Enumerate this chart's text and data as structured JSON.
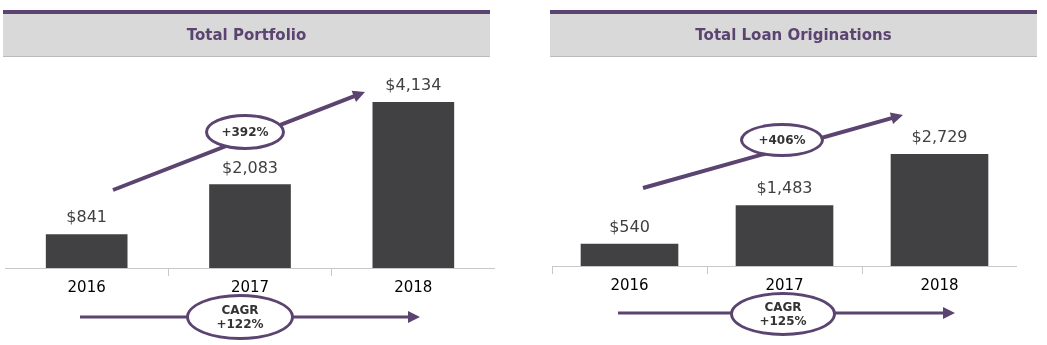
{
  "chart_data": [
    {
      "type": "bar",
      "title": "Total Portfolio",
      "categories": [
        "2016",
        "2017",
        "2018"
      ],
      "values": [
        841,
        2083,
        4134
      ],
      "color": "#414042",
      "value_labels": [
        "$841",
        "$2,083",
        "$4,134"
      ],
      "annotations": [
        "+392%",
        "CAGR +122%"
      ]
    },
    {
      "type": "bar",
      "title": "Total Loan Originations",
      "categories": [
        "2016",
        "2017",
        "2018"
      ],
      "values": [
        540,
        1483,
        2729
      ],
      "color": "#414042",
      "value_labels": [
        "$540",
        "$1,483",
        "$2,729"
      ],
      "annotations": [
        "+406%",
        "CAGR +125%"
      ]
    }
  ]
}
